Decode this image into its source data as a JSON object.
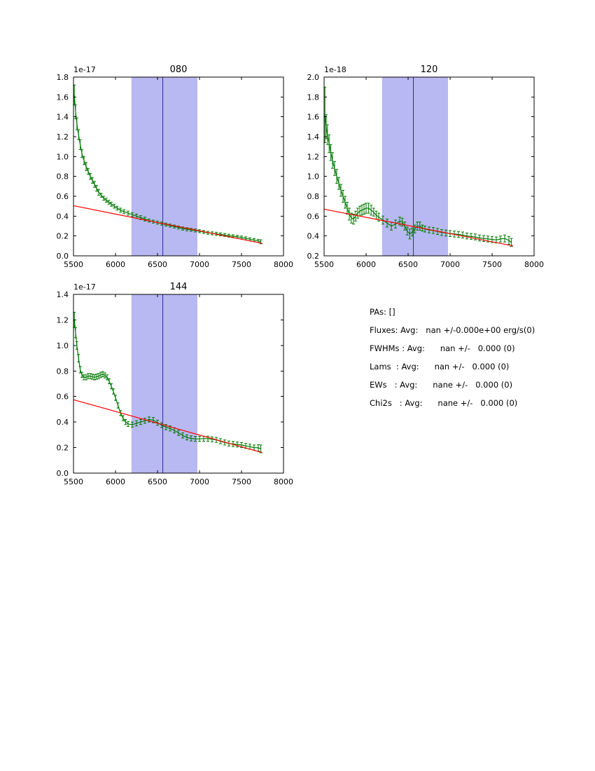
{
  "figure": {
    "background": "#ffffff"
  },
  "stats": {
    "lines": [
      "PAs: []",
      "Fluxes: Avg:   nan +/-0.000e+00 erg/s(0)",
      "FWHMs : Avg:      nan +/-   0.000 (0)",
      "Lams  : Avg:      nan +/-   0.000 (0)",
      "EWs   : Avg:      nane +/-   0.000 (0)",
      "Chi2s   : Avg:      nane +/-   0.000 (0)"
    ]
  },
  "chart_data": [
    {
      "type": "line",
      "title": "080",
      "offset_label": "1e-17",
      "xlabel": "",
      "ylabel": "",
      "xlim": [
        5500,
        8000
      ],
      "ylim": [
        0.0,
        1.8
      ],
      "xticks": [
        5500,
        6000,
        6500,
        7000,
        7500,
        8000
      ],
      "yticks": [
        0.0,
        0.2,
        0.4,
        0.6,
        0.8,
        1.0,
        1.2,
        1.4,
        1.6,
        1.8
      ],
      "grid": false,
      "legend": "none",
      "band": {
        "xmin": 6190,
        "xmax": 6975,
        "color": "#b8b8f2"
      },
      "vline": {
        "x": 6563,
        "color": "#2a2a9e"
      },
      "fit_line": {
        "x": [
          5500,
          7750
        ],
        "y": [
          0.505,
          0.125
        ],
        "color": "#ff0000"
      },
      "series": [
        {
          "name": "spectrum",
          "color": "#007a00",
          "points": [
            [
              5510,
              1.62,
              0.1
            ],
            [
              5525,
              1.45,
              0.07
            ],
            [
              5540,
              1.33,
              0.06
            ],
            [
              5560,
              1.22,
              0.05
            ],
            [
              5580,
              1.12,
              0.05
            ],
            [
              5600,
              1.03,
              0.04
            ],
            [
              5625,
              0.96,
              0.04
            ],
            [
              5650,
              0.9,
              0.04
            ],
            [
              5675,
              0.85,
              0.03
            ],
            [
              5700,
              0.8,
              0.03
            ],
            [
              5725,
              0.76,
              0.03
            ],
            [
              5750,
              0.72,
              0.03
            ],
            [
              5775,
              0.68,
              0.03
            ],
            [
              5800,
              0.64,
              0.03
            ],
            [
              5830,
              0.61,
              0.02
            ],
            [
              5860,
              0.58,
              0.02
            ],
            [
              5890,
              0.56,
              0.02
            ],
            [
              5920,
              0.54,
              0.02
            ],
            [
              5950,
              0.52,
              0.02
            ],
            [
              5985,
              0.5,
              0.02
            ],
            [
              6020,
              0.48,
              0.02
            ],
            [
              6060,
              0.46,
              0.02
            ],
            [
              6100,
              0.445,
              0.02
            ],
            [
              6150,
              0.43,
              0.02
            ],
            [
              6200,
              0.415,
              0.02
            ],
            [
              6250,
              0.4,
              0.02
            ],
            [
              6300,
              0.385,
              0.02
            ],
            [
              6350,
              0.37,
              0.02
            ],
            [
              6400,
              0.355,
              0.015
            ],
            [
              6450,
              0.345,
              0.015
            ],
            [
              6500,
              0.335,
              0.015
            ],
            [
              6550,
              0.325,
              0.015
            ],
            [
              6600,
              0.315,
              0.015
            ],
            [
              6650,
              0.305,
              0.015
            ],
            [
              6700,
              0.295,
              0.015
            ],
            [
              6750,
              0.285,
              0.015
            ],
            [
              6800,
              0.275,
              0.015
            ],
            [
              6850,
              0.268,
              0.015
            ],
            [
              6900,
              0.262,
              0.015
            ],
            [
              6950,
              0.255,
              0.015
            ],
            [
              7000,
              0.248,
              0.015
            ],
            [
              7050,
              0.24,
              0.015
            ],
            [
              7100,
              0.232,
              0.015
            ],
            [
              7150,
              0.227,
              0.015
            ],
            [
              7200,
              0.222,
              0.015
            ],
            [
              7250,
              0.216,
              0.015
            ],
            [
              7300,
              0.21,
              0.015
            ],
            [
              7350,
              0.203,
              0.015
            ],
            [
              7400,
              0.197,
              0.015
            ],
            [
              7450,
              0.191,
              0.015
            ],
            [
              7500,
              0.185,
              0.015
            ],
            [
              7550,
              0.176,
              0.015
            ],
            [
              7600,
              0.167,
              0.015
            ],
            [
              7650,
              0.158,
              0.015
            ],
            [
              7700,
              0.15,
              0.015
            ],
            [
              7730,
              0.142,
              0.02
            ]
          ]
        }
      ]
    },
    {
      "type": "line",
      "title": "120",
      "offset_label": "1e-18",
      "xlabel": "",
      "ylabel": "",
      "xlim": [
        5500,
        8000
      ],
      "ylim": [
        0.2,
        2.0
      ],
      "xticks": [
        5500,
        6000,
        6500,
        7000,
        7500,
        8000
      ],
      "yticks": [
        0.2,
        0.4,
        0.6,
        0.8,
        1.0,
        1.2,
        1.4,
        1.6,
        1.8,
        2.0
      ],
      "grid": false,
      "legend": "none",
      "band": {
        "xmin": 6190,
        "xmax": 6975,
        "color": "#b8b8f2"
      },
      "vline": {
        "x": 6563,
        "color": "#2a2a9e"
      },
      "fit_line": {
        "x": [
          5500,
          7750
        ],
        "y": [
          0.67,
          0.3
        ],
        "color": "#ff0000"
      },
      "series": [
        {
          "name": "spectrum",
          "color": "#007a00",
          "points": [
            [
              5510,
              1.62,
              0.28
            ],
            [
              5525,
              1.5,
              0.12
            ],
            [
              5540,
              1.42,
              0.1
            ],
            [
              5560,
              1.33,
              0.09
            ],
            [
              5580,
              1.24,
              0.08
            ],
            [
              5600,
              1.16,
              0.08
            ],
            [
              5625,
              1.08,
              0.07
            ],
            [
              5650,
              1.0,
              0.07
            ],
            [
              5675,
              0.93,
              0.06
            ],
            [
              5700,
              0.86,
              0.06
            ],
            [
              5725,
              0.8,
              0.06
            ],
            [
              5750,
              0.74,
              0.06
            ],
            [
              5775,
              0.68,
              0.06
            ],
            [
              5800,
              0.62,
              0.06
            ],
            [
              5825,
              0.58,
              0.05
            ],
            [
              5850,
              0.57,
              0.05
            ],
            [
              5875,
              0.6,
              0.05
            ],
            [
              5900,
              0.63,
              0.05
            ],
            [
              5925,
              0.65,
              0.05
            ],
            [
              5950,
              0.66,
              0.05
            ],
            [
              5975,
              0.67,
              0.05
            ],
            [
              6000,
              0.68,
              0.05
            ],
            [
              6030,
              0.68,
              0.05
            ],
            [
              6060,
              0.66,
              0.05
            ],
            [
              6090,
              0.64,
              0.04
            ],
            [
              6120,
              0.61,
              0.04
            ],
            [
              6150,
              0.59,
              0.04
            ],
            [
              6200,
              0.56,
              0.04
            ],
            [
              6250,
              0.53,
              0.04
            ],
            [
              6300,
              0.5,
              0.04
            ],
            [
              6350,
              0.52,
              0.04
            ],
            [
              6400,
              0.55,
              0.04
            ],
            [
              6430,
              0.54,
              0.04
            ],
            [
              6460,
              0.5,
              0.04
            ],
            [
              6490,
              0.45,
              0.04
            ],
            [
              6520,
              0.42,
              0.05
            ],
            [
              6550,
              0.44,
              0.04
            ],
            [
              6580,
              0.47,
              0.04
            ],
            [
              6610,
              0.5,
              0.04
            ],
            [
              6640,
              0.5,
              0.04
            ],
            [
              6670,
              0.48,
              0.03
            ],
            [
              6700,
              0.47,
              0.03
            ],
            [
              6750,
              0.46,
              0.03
            ],
            [
              6800,
              0.455,
              0.03
            ],
            [
              6850,
              0.445,
              0.03
            ],
            [
              6900,
              0.435,
              0.03
            ],
            [
              6950,
              0.43,
              0.03
            ],
            [
              7000,
              0.425,
              0.03
            ],
            [
              7050,
              0.42,
              0.03
            ],
            [
              7100,
              0.415,
              0.03
            ],
            [
              7150,
              0.41,
              0.03
            ],
            [
              7200,
              0.4,
              0.03
            ],
            [
              7250,
              0.395,
              0.03
            ],
            [
              7300,
              0.39,
              0.03
            ],
            [
              7350,
              0.38,
              0.03
            ],
            [
              7400,
              0.375,
              0.03
            ],
            [
              7450,
              0.37,
              0.03
            ],
            [
              7500,
              0.365,
              0.03
            ],
            [
              7550,
              0.36,
              0.03
            ],
            [
              7600,
              0.37,
              0.03
            ],
            [
              7650,
              0.375,
              0.035
            ],
            [
              7700,
              0.355,
              0.04
            ],
            [
              7730,
              0.335,
              0.04
            ]
          ]
        }
      ]
    },
    {
      "type": "line",
      "title": "144",
      "offset_label": "1e-17",
      "xlabel": "",
      "ylabel": "",
      "xlim": [
        5500,
        8000
      ],
      "ylim": [
        0.0,
        1.4
      ],
      "xticks": [
        5500,
        6000,
        6500,
        7000,
        7500,
        8000
      ],
      "yticks": [
        0.0,
        0.2,
        0.4,
        0.6,
        0.8,
        1.0,
        1.2,
        1.4
      ],
      "grid": false,
      "legend": "none",
      "band": {
        "xmin": 6190,
        "xmax": 6975,
        "color": "#b8b8f2"
      },
      "vline": {
        "x": 6563,
        "color": "#2a2a9e"
      },
      "fit_line": {
        "x": [
          5500,
          7750
        ],
        "y": [
          0.575,
          0.16
        ],
        "color": "#ff0000"
      },
      "series": [
        {
          "name": "spectrum",
          "color": "#007a00",
          "points": [
            [
              5510,
              1.2,
              0.06
            ],
            [
              5525,
              1.1,
              0.04
            ],
            [
              5540,
              1.0,
              0.03
            ],
            [
              5560,
              0.9,
              0.03
            ],
            [
              5580,
              0.81,
              0.025
            ],
            [
              5600,
              0.77,
              0.02
            ],
            [
              5625,
              0.75,
              0.02
            ],
            [
              5650,
              0.75,
              0.02
            ],
            [
              5675,
              0.76,
              0.02
            ],
            [
              5700,
              0.76,
              0.02
            ],
            [
              5725,
              0.755,
              0.02
            ],
            [
              5750,
              0.75,
              0.02
            ],
            [
              5775,
              0.755,
              0.02
            ],
            [
              5800,
              0.76,
              0.02
            ],
            [
              5825,
              0.77,
              0.02
            ],
            [
              5850,
              0.775,
              0.02
            ],
            [
              5875,
              0.765,
              0.02
            ],
            [
              5900,
              0.75,
              0.02
            ],
            [
              5925,
              0.72,
              0.02
            ],
            [
              5950,
              0.68,
              0.02
            ],
            [
              5975,
              0.64,
              0.02
            ],
            [
              6000,
              0.59,
              0.02
            ],
            [
              6030,
              0.53,
              0.02
            ],
            [
              6060,
              0.47,
              0.02
            ],
            [
              6090,
              0.43,
              0.02
            ],
            [
              6120,
              0.4,
              0.02
            ],
            [
              6150,
              0.385,
              0.02
            ],
            [
              6200,
              0.38,
              0.02
            ],
            [
              6250,
              0.39,
              0.02
            ],
            [
              6300,
              0.4,
              0.02
            ],
            [
              6350,
              0.41,
              0.02
            ],
            [
              6400,
              0.42,
              0.02
            ],
            [
              6450,
              0.415,
              0.02
            ],
            [
              6500,
              0.395,
              0.02
            ],
            [
              6550,
              0.375,
              0.02
            ],
            [
              6600,
              0.36,
              0.02
            ],
            [
              6650,
              0.35,
              0.02
            ],
            [
              6700,
              0.335,
              0.02
            ],
            [
              6750,
              0.315,
              0.02
            ],
            [
              6800,
              0.295,
              0.02
            ],
            [
              6850,
              0.28,
              0.02
            ],
            [
              6900,
              0.272,
              0.02
            ],
            [
              6950,
              0.268,
              0.02
            ],
            [
              7000,
              0.268,
              0.02
            ],
            [
              7050,
              0.27,
              0.02
            ],
            [
              7100,
              0.27,
              0.02
            ],
            [
              7150,
              0.265,
              0.02
            ],
            [
              7200,
              0.26,
              0.02
            ],
            [
              7250,
              0.25,
              0.02
            ],
            [
              7300,
              0.24,
              0.02
            ],
            [
              7350,
              0.232,
              0.02
            ],
            [
              7400,
              0.228,
              0.02
            ],
            [
              7450,
              0.224,
              0.02
            ],
            [
              7500,
              0.22,
              0.02
            ],
            [
              7550,
              0.213,
              0.02
            ],
            [
              7600,
              0.207,
              0.02
            ],
            [
              7650,
              0.2,
              0.02
            ],
            [
              7700,
              0.198,
              0.025
            ],
            [
              7730,
              0.19,
              0.03
            ]
          ]
        }
      ]
    }
  ]
}
